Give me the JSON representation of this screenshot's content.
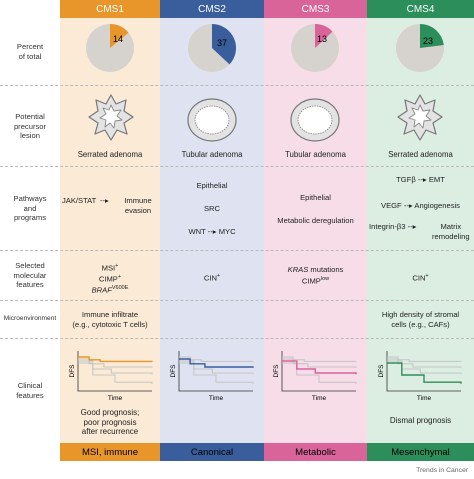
{
  "columns": [
    {
      "name": "CMS1",
      "percent": 14,
      "color": "#e8952a",
      "bg": "#fbead6",
      "footer": "MSI, immune",
      "lesion": "Serrated adenoma"
    },
    {
      "name": "CMS2",
      "percent": 37,
      "color": "#3a5d9c",
      "bg": "#dfe3f1",
      "footer": "Canonical",
      "lesion": "Tubular adenoma"
    },
    {
      "name": "CMS3",
      "percent": 13,
      "color": "#d8649a",
      "bg": "#f7dde8",
      "footer": "Metabolic",
      "lesion": "Tubular adenoma"
    },
    {
      "name": "CMS4",
      "percent": 23,
      "color": "#2c8f5b",
      "bg": "#dceee2",
      "footer": "Mesenchymal",
      "lesion": "Serrated adenoma"
    }
  ],
  "row_labels": {
    "percent": [
      "Percent",
      "of total"
    ],
    "lesion": [
      "Potential",
      "precursor",
      "lesion"
    ],
    "pathways": [
      "Pathways",
      "and",
      "programs"
    ],
    "molecular": [
      "Selected",
      "molecular",
      "features"
    ],
    "micro": [
      "Microenvironment"
    ],
    "clinical": [
      "Clinical",
      "features"
    ]
  },
  "pathways": {
    "cms1": {
      "left": "JAK/STAT",
      "right1": "Immune",
      "right2": "evasion"
    },
    "cms2": {
      "l1": "Epithelial",
      "l2": "SRC",
      "l3a": "WNT",
      "l3b": "MYC"
    },
    "cms3": {
      "l1": "Epithelial",
      "l2": "Metabolic deregulation"
    },
    "cms4": {
      "a1": "TGFβ",
      "a2": "EMT",
      "b1": "VEGF",
      "b2": "Angiogenesis",
      "c1": "Integrin-β3",
      "c2": "Matrix",
      "c3": "remodeling"
    }
  },
  "molecular": {
    "cms1": {
      "msi": "MSI",
      "msi_sup": "+",
      "cimp": "CIMP",
      "cimp_sup": "+",
      "braf": "BRAF",
      "braf_sup": "V600E"
    },
    "cms2": {
      "cin": "CIN",
      "cin_sup": "+"
    },
    "cms3": {
      "kras": "KRAS",
      "kras_rest": " mutations",
      "cimp": "CIMP",
      "cimp_sup": "low"
    },
    "cms4": {
      "cin": "CIN",
      "cin_sup": "+"
    }
  },
  "micro": {
    "cms1": [
      "Immune infiltrate",
      "(e.g., cytotoxic T cells)"
    ],
    "cms4": [
      "High density of stromal",
      "cells (e.g., CAFs)"
    ]
  },
  "clinical": {
    "axis_y": "DFS",
    "axis_x": "Time",
    "cms1": [
      "Good prognosis;",
      "poor prognosis",
      "after recurrence"
    ],
    "cms4": [
      "Dismal prognosis"
    ]
  },
  "credit": "Trends in Cancer"
}
